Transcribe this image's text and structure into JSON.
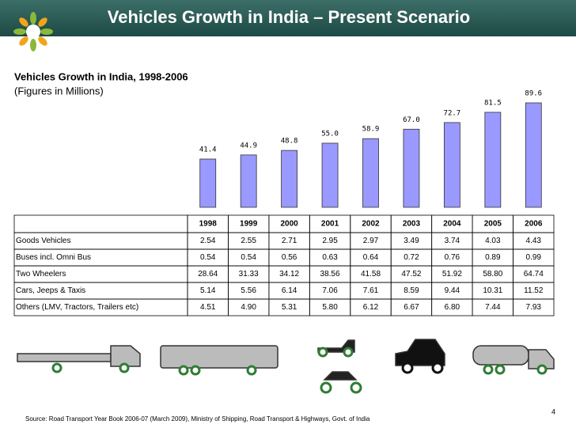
{
  "header": {
    "title": "Vehicles Growth in India – Present Scenario"
  },
  "chart_data": {
    "type": "bar",
    "title": "Vehicles Growth in India, 1998-2006",
    "subtitle": "(Figures in Millions)",
    "categories": [
      "1998",
      "1999",
      "2000",
      "2001",
      "2002",
      "2003",
      "2004",
      "2005",
      "2006"
    ],
    "values": [
      41.4,
      44.9,
      48.8,
      55.0,
      58.9,
      67.0,
      72.7,
      81.5,
      89.6
    ],
    "value_labels": [
      "41.4",
      "44.9",
      "48.8",
      "55.0",
      "58.9",
      "67.0",
      "72.7",
      "81.5",
      "89.6"
    ],
    "color": "#9999ff"
  },
  "table": {
    "rows": [
      {
        "label": "Goods Vehicles",
        "cells": [
          "2.54",
          "2.55",
          "2.71",
          "2.95",
          "2.97",
          "3.49",
          "3.74",
          "4.03",
          "4.43"
        ]
      },
      {
        "label": "Buses incl. Omni Bus",
        "cells": [
          "0.54",
          "0.54",
          "0.56",
          "0.63",
          "0.64",
          "0.72",
          "0.76",
          "0.89",
          "0.99"
        ]
      },
      {
        "label": "Two Wheelers",
        "cells": [
          "28.64",
          "31.33",
          "34.12",
          "38.56",
          "41.58",
          "47.52",
          "51.92",
          "58.80",
          "64.74"
        ]
      },
      {
        "label": "Cars, Jeeps & Taxis",
        "cells": [
          "5.14",
          "5.56",
          "6.14",
          "7.06",
          "7.61",
          "8.59",
          "9.44",
          "10.31",
          "11.52"
        ]
      },
      {
        "label": "Others (LMV, Tractors, Trailers etc)",
        "cells": [
          "4.51",
          "4.90",
          "5.31",
          "5.80",
          "6.12",
          "6.67",
          "6.80",
          "7.44",
          "7.93"
        ]
      }
    ]
  },
  "footer": {
    "source": "Source: Road Transport Year Book 2006-07 (March 2009), Ministry of Shipping, Road Transport & Highways, Govt. of India",
    "page": "4"
  }
}
